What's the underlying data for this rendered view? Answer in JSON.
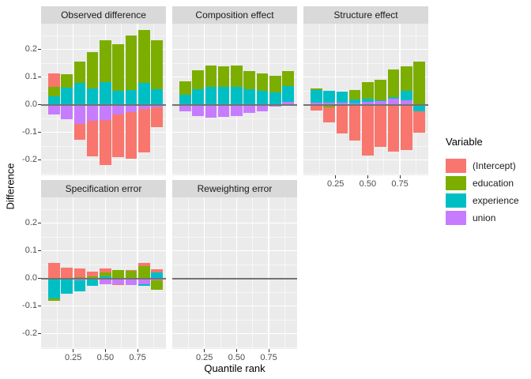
{
  "chart_data": {
    "type": "bar",
    "subtype": "stacked-faceted",
    "xlabel": "Quantile rank",
    "ylabel": "Difference",
    "legend_title": "Variable",
    "x": [
      0.1,
      0.2,
      0.3,
      0.4,
      0.5,
      0.6,
      0.7,
      0.8,
      0.9
    ],
    "x_tick_values": [
      0.25,
      0.5,
      0.75
    ],
    "x_tick_labels": [
      "0.25",
      "0.50",
      "0.75"
    ],
    "x_minor": [
      0.125,
      0.375,
      0.625,
      0.875
    ],
    "y_tick_values": [
      0.2,
      0.1,
      0.0,
      -0.1,
      -0.2
    ],
    "y_tick_labels": [
      "0.2",
      "0.1",
      "0.0",
      "-0.1",
      "-0.2"
    ],
    "y_minor": [
      0.25,
      0.15,
      0.05,
      -0.05,
      -0.15,
      -0.25
    ],
    "ylim": [
      -0.255,
      0.293
    ],
    "grid": "on",
    "legend_position": "right",
    "variables": [
      {
        "label": "(Intercept)",
        "color": "#F8766D"
      },
      {
        "label": "education",
        "color": "#7CAE00"
      },
      {
        "label": "experience",
        "color": "#00BFC4"
      },
      {
        "label": "union",
        "color": "#C77CFF"
      }
    ],
    "facets": [
      {
        "id": "observed-difference",
        "title": "Observed difference",
        "row": 0,
        "col": 0,
        "series": {
          "(Intercept)": [
            0.048,
            0.0,
            -0.059,
            -0.13,
            -0.164,
            -0.153,
            -0.168,
            -0.158,
            -0.072
          ],
          "education": [
            0.034,
            0.048,
            0.079,
            0.131,
            0.153,
            0.169,
            0.195,
            0.191,
            0.176
          ],
          "experience": [
            0.03,
            0.062,
            0.078,
            0.06,
            0.081,
            0.05,
            0.054,
            0.079,
            0.057
          ],
          "union": [
            -0.034,
            -0.051,
            -0.069,
            -0.057,
            -0.054,
            -0.036,
            -0.027,
            -0.015,
            -0.01
          ]
        }
      },
      {
        "id": "composition-effect",
        "title": "Composition effect",
        "row": 0,
        "col": 1,
        "series": {
          "(Intercept)": [
            0.0,
            0.0,
            0.0,
            0.0,
            0.0,
            0.0,
            0.0,
            0.0,
            0.0
          ],
          "education": [
            0.05,
            0.068,
            0.078,
            0.074,
            0.076,
            0.067,
            0.064,
            0.061,
            0.055
          ],
          "experience": [
            0.036,
            0.057,
            0.065,
            0.065,
            0.065,
            0.055,
            0.05,
            0.044,
            0.057
          ],
          "union": [
            -0.025,
            -0.04,
            -0.046,
            -0.044,
            -0.04,
            -0.03,
            -0.023,
            -0.008,
            0.01
          ]
        }
      },
      {
        "id": "structure-effect",
        "title": "Structure effect",
        "row": 0,
        "col": 2,
        "series": {
          "(Intercept)": [
            -0.02,
            -0.054,
            -0.1,
            -0.13,
            -0.183,
            -0.152,
            -0.169,
            -0.164,
            -0.078
          ],
          "education": [
            0.006,
            -0.01,
            -0.005,
            0.036,
            0.06,
            0.074,
            0.1,
            0.089,
            0.155
          ],
          "experience": [
            0.046,
            0.043,
            0.042,
            0.012,
            0.012,
            0.002,
            0.005,
            0.033,
            -0.024
          ],
          "union": [
            0.008,
            0.007,
            0.007,
            0.006,
            0.01,
            0.014,
            0.022,
            0.017,
            0.002
          ]
        }
      },
      {
        "id": "specification-error",
        "title": "Specification error",
        "row": 1,
        "col": 0,
        "series": {
          "(Intercept)": [
            0.055,
            0.038,
            0.031,
            0.017,
            0.013,
            -0.004,
            0.004,
            0.011,
            0.009
          ],
          "education": [
            -0.008,
            0.0,
            0.005,
            0.007,
            0.014,
            0.031,
            0.027,
            0.046,
            -0.034
          ],
          "experience": [
            -0.071,
            -0.053,
            -0.042,
            -0.022,
            0.008,
            0.0,
            0.0,
            -0.006,
            0.023
          ],
          "union": [
            -0.002,
            -0.003,
            -0.006,
            -0.004,
            -0.021,
            -0.021,
            -0.023,
            -0.021,
            -0.006
          ]
        }
      },
      {
        "id": "reweighting-error",
        "title": "Reweighting error",
        "row": 1,
        "col": 1,
        "series": {
          "(Intercept)": [
            0.0,
            0.0,
            0.0,
            0.0,
            0.0,
            0.0,
            0.0,
            0.0,
            0.0
          ],
          "education": [
            0.0,
            0.0,
            0.0,
            0.0,
            0.0,
            0.0,
            0.0,
            0.0,
            0.0
          ],
          "experience": [
            0.0,
            0.0,
            0.0,
            0.0,
            0.0,
            0.0,
            0.0,
            0.0,
            0.0
          ],
          "union": [
            0.0,
            0.0,
            0.0,
            0.0,
            0.0,
            0.0,
            0.0,
            0.0,
            0.0
          ]
        }
      }
    ]
  }
}
